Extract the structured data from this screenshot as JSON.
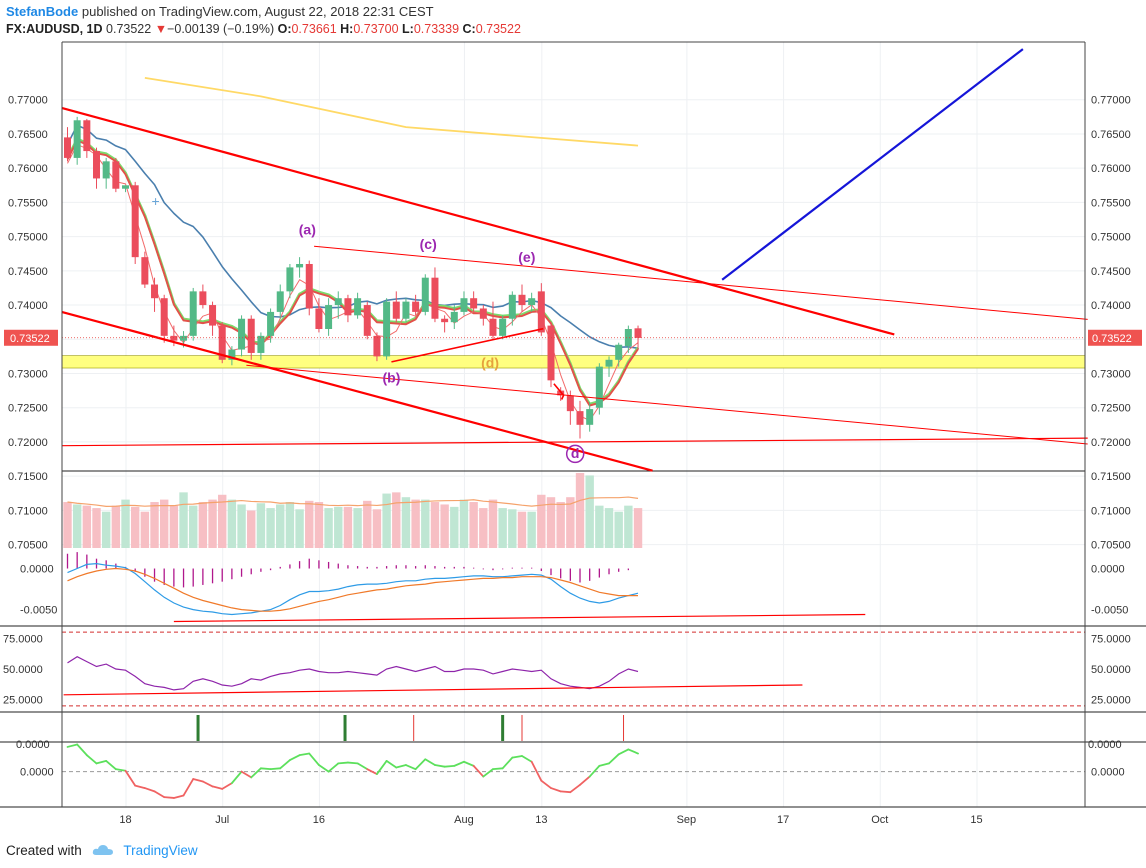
{
  "header": {
    "author": "StefanBode",
    "published_text": "published on TradingView.com, August 22, 2018 22:31 CEST",
    "symbol": "FX:AUDUSD, 1D",
    "last": "0.73522",
    "arrow": "▼",
    "change": "−0.00139 (−0.19%)",
    "o_label": "O:",
    "o": "0.73661",
    "h_label": "H:",
    "h": "0.73700",
    "l_label": "L:",
    "l": "0.73339",
    "c_label": "C:",
    "c": "0.73522"
  },
  "footer": {
    "created_with": "Created with",
    "brand": "TradingView"
  },
  "colors": {
    "up": "#53b987",
    "down": "#eb4d5c",
    "trend": "#ff0000",
    "blue": "#1515d8",
    "zone": "#ffff80",
    "ma200": "#ffd966",
    "ma50": "#4a7fae"
  },
  "chart_data": {
    "type": "candlestick",
    "symbol": "FX:AUDUSD",
    "interval": "1D",
    "price_axis": {
      "range": [
        0.7045,
        0.778
      ],
      "ticks": [
        "0.77000",
        "0.76500",
        "0.76000",
        "0.75500",
        "0.75000",
        "0.74500",
        "0.74000",
        "0.73500",
        "0.73000",
        "0.72500",
        "0.72000",
        "0.71500",
        "0.71000",
        "0.70500"
      ],
      "last_price_label": "0.73522"
    },
    "time_axis": {
      "labels": [
        {
          "text": "18",
          "day": 6
        },
        {
          "text": "Jul",
          "day": 16
        },
        {
          "text": "16",
          "day": 26
        },
        {
          "text": "Aug",
          "day": 41
        },
        {
          "text": "13",
          "day": 49
        },
        {
          "text": "Sep",
          "day": 64
        },
        {
          "text": "17",
          "day": 74
        },
        {
          "text": "Oct",
          "day": 84
        },
        {
          "text": "15",
          "day": 94
        }
      ]
    },
    "candles": [
      {
        "d": 0,
        "o": 0.7645,
        "h": 0.766,
        "l": 0.761,
        "c": 0.7615
      },
      {
        "d": 1,
        "o": 0.7615,
        "h": 0.7675,
        "l": 0.7605,
        "c": 0.767
      },
      {
        "d": 2,
        "o": 0.767,
        "h": 0.7672,
        "l": 0.7615,
        "c": 0.7625
      },
      {
        "d": 3,
        "o": 0.7625,
        "h": 0.763,
        "l": 0.757,
        "c": 0.7585
      },
      {
        "d": 4,
        "o": 0.7585,
        "h": 0.7615,
        "l": 0.757,
        "c": 0.761
      },
      {
        "d": 5,
        "o": 0.761,
        "h": 0.7615,
        "l": 0.7565,
        "c": 0.757
      },
      {
        "d": 6,
        "o": 0.757,
        "h": 0.7575,
        "l": 0.7565,
        "c": 0.7575
      },
      {
        "d": 7,
        "o": 0.7575,
        "h": 0.758,
        "l": 0.746,
        "c": 0.747
      },
      {
        "d": 8,
        "o": 0.747,
        "h": 0.7478,
        "l": 0.7425,
        "c": 0.743
      },
      {
        "d": 9,
        "o": 0.743,
        "h": 0.744,
        "l": 0.739,
        "c": 0.741
      },
      {
        "d": 10,
        "o": 0.741,
        "h": 0.7415,
        "l": 0.7345,
        "c": 0.7355
      },
      {
        "d": 11,
        "o": 0.7355,
        "h": 0.737,
        "l": 0.734,
        "c": 0.7348
      },
      {
        "d": 12,
        "o": 0.7348,
        "h": 0.7362,
        "l": 0.7338,
        "c": 0.7355
      },
      {
        "d": 13,
        "o": 0.7355,
        "h": 0.7425,
        "l": 0.7348,
        "c": 0.742
      },
      {
        "d": 14,
        "o": 0.742,
        "h": 0.743,
        "l": 0.7395,
        "c": 0.74
      },
      {
        "d": 15,
        "o": 0.74,
        "h": 0.7405,
        "l": 0.7355,
        "c": 0.737
      },
      {
        "d": 16,
        "o": 0.737,
        "h": 0.7375,
        "l": 0.7315,
        "c": 0.732
      },
      {
        "d": 17,
        "o": 0.732,
        "h": 0.734,
        "l": 0.7312,
        "c": 0.7335
      },
      {
        "d": 18,
        "o": 0.7335,
        "h": 0.7385,
        "l": 0.7325,
        "c": 0.738
      },
      {
        "d": 19,
        "o": 0.738,
        "h": 0.7385,
        "l": 0.732,
        "c": 0.733
      },
      {
        "d": 20,
        "o": 0.733,
        "h": 0.736,
        "l": 0.732,
        "c": 0.7355
      },
      {
        "d": 21,
        "o": 0.7355,
        "h": 0.7395,
        "l": 0.7345,
        "c": 0.739
      },
      {
        "d": 22,
        "o": 0.739,
        "h": 0.743,
        "l": 0.738,
        "c": 0.742
      },
      {
        "d": 23,
        "o": 0.742,
        "h": 0.746,
        "l": 0.741,
        "c": 0.7455
      },
      {
        "d": 24,
        "o": 0.7455,
        "h": 0.747,
        "l": 0.744,
        "c": 0.746
      },
      {
        "d": 25,
        "o": 0.746,
        "h": 0.7465,
        "l": 0.7385,
        "c": 0.7395
      },
      {
        "d": 26,
        "o": 0.7395,
        "h": 0.741,
        "l": 0.736,
        "c": 0.7365
      },
      {
        "d": 27,
        "o": 0.7365,
        "h": 0.741,
        "l": 0.7355,
        "c": 0.74
      },
      {
        "d": 28,
        "o": 0.74,
        "h": 0.742,
        "l": 0.738,
        "c": 0.741
      },
      {
        "d": 29,
        "o": 0.741,
        "h": 0.7415,
        "l": 0.7375,
        "c": 0.7385
      },
      {
        "d": 30,
        "o": 0.7385,
        "h": 0.7418,
        "l": 0.738,
        "c": 0.741
      },
      {
        "d": 31,
        "o": 0.74,
        "h": 0.7405,
        "l": 0.735,
        "c": 0.7355
      },
      {
        "d": 32,
        "o": 0.7355,
        "h": 0.736,
        "l": 0.7318,
        "c": 0.7325
      },
      {
        "d": 33,
        "o": 0.7325,
        "h": 0.741,
        "l": 0.732,
        "c": 0.7405
      },
      {
        "d": 34,
        "o": 0.7405,
        "h": 0.742,
        "l": 0.7375,
        "c": 0.738
      },
      {
        "d": 35,
        "o": 0.738,
        "h": 0.741,
        "l": 0.7375,
        "c": 0.7405
      },
      {
        "d": 36,
        "o": 0.7405,
        "h": 0.7415,
        "l": 0.7385,
        "c": 0.739
      },
      {
        "d": 37,
        "o": 0.739,
        "h": 0.7445,
        "l": 0.7385,
        "c": 0.744
      },
      {
        "d": 38,
        "o": 0.744,
        "h": 0.7455,
        "l": 0.7375,
        "c": 0.738
      },
      {
        "d": 39,
        "o": 0.738,
        "h": 0.7385,
        "l": 0.736,
        "c": 0.7375
      },
      {
        "d": 40,
        "o": 0.7375,
        "h": 0.74,
        "l": 0.7365,
        "c": 0.739
      },
      {
        "d": 41,
        "o": 0.739,
        "h": 0.742,
        "l": 0.7385,
        "c": 0.741
      },
      {
        "d": 42,
        "o": 0.741,
        "h": 0.742,
        "l": 0.739,
        "c": 0.7395
      },
      {
        "d": 43,
        "o": 0.7395,
        "h": 0.74,
        "l": 0.737,
        "c": 0.738
      },
      {
        "d": 44,
        "o": 0.738,
        "h": 0.7405,
        "l": 0.735,
        "c": 0.7355
      },
      {
        "d": 45,
        "o": 0.7355,
        "h": 0.7385,
        "l": 0.735,
        "c": 0.738
      },
      {
        "d": 46,
        "o": 0.738,
        "h": 0.742,
        "l": 0.737,
        "c": 0.7415
      },
      {
        "d": 47,
        "o": 0.7415,
        "h": 0.743,
        "l": 0.739,
        "c": 0.74
      },
      {
        "d": 48,
        "o": 0.74,
        "h": 0.7418,
        "l": 0.739,
        "c": 0.741
      },
      {
        "d": 49,
        "o": 0.742,
        "h": 0.7432,
        "l": 0.7355,
        "c": 0.736
      },
      {
        "d": 50,
        "o": 0.737,
        "h": 0.7375,
        "l": 0.728,
        "c": 0.729
      },
      {
        "d": 51,
        "o": 0.7275,
        "h": 0.728,
        "l": 0.726,
        "c": 0.7268
      },
      {
        "d": 52,
        "o": 0.7268,
        "h": 0.7275,
        "l": 0.7225,
        "c": 0.7245
      },
      {
        "d": 53,
        "o": 0.7245,
        "h": 0.726,
        "l": 0.7205,
        "c": 0.7225
      },
      {
        "d": 54,
        "o": 0.7225,
        "h": 0.7258,
        "l": 0.7215,
        "c": 0.7248
      },
      {
        "d": 55,
        "o": 0.725,
        "h": 0.7315,
        "l": 0.724,
        "c": 0.731
      },
      {
        "d": 56,
        "o": 0.731,
        "h": 0.7325,
        "l": 0.7295,
        "c": 0.732
      },
      {
        "d": 57,
        "o": 0.732,
        "h": 0.7345,
        "l": 0.731,
        "c": 0.7342
      },
      {
        "d": 58,
        "o": 0.734,
        "h": 0.737,
        "l": 0.733,
        "c": 0.7365
      },
      {
        "d": 59,
        "o": 0.7366,
        "h": 0.737,
        "l": 0.7334,
        "c": 0.7352
      }
    ],
    "volume": [
      38,
      36,
      35,
      33,
      30,
      35,
      40,
      34,
      30,
      38,
      40,
      35,
      46,
      35,
      38,
      40,
      44,
      40,
      36,
      31,
      37,
      33,
      36,
      38,
      32,
      39,
      38,
      33,
      34,
      34,
      33,
      39,
      32,
      45,
      46,
      42,
      40,
      40,
      38,
      36,
      34,
      40,
      38,
      33,
      40,
      33,
      32,
      30,
      30,
      44,
      42,
      38,
      42,
      62,
      60,
      35,
      33,
      30,
      35,
      33
    ],
    "volume_baseline": 29,
    "macd_axis": {
      "range": [
        -0.007,
        0.0025
      ],
      "ticks": [
        "0.0000",
        "-0.0050"
      ]
    },
    "rsi_axis": {
      "range": [
        15,
        85
      ],
      "ticks": [
        "75.0000",
        "50.0000",
        "25.0000"
      ],
      "bands": [
        80,
        20
      ]
    },
    "osc_axis": {
      "range": [
        -0.0043,
        0.0036
      ],
      "ticks": [
        "0.0000"
      ],
      "top_tick": "0.0000"
    },
    "wave_labels": [
      "(a)",
      "(b)",
      "(c)",
      "(d)",
      "(e)",
      "d"
    ]
  }
}
